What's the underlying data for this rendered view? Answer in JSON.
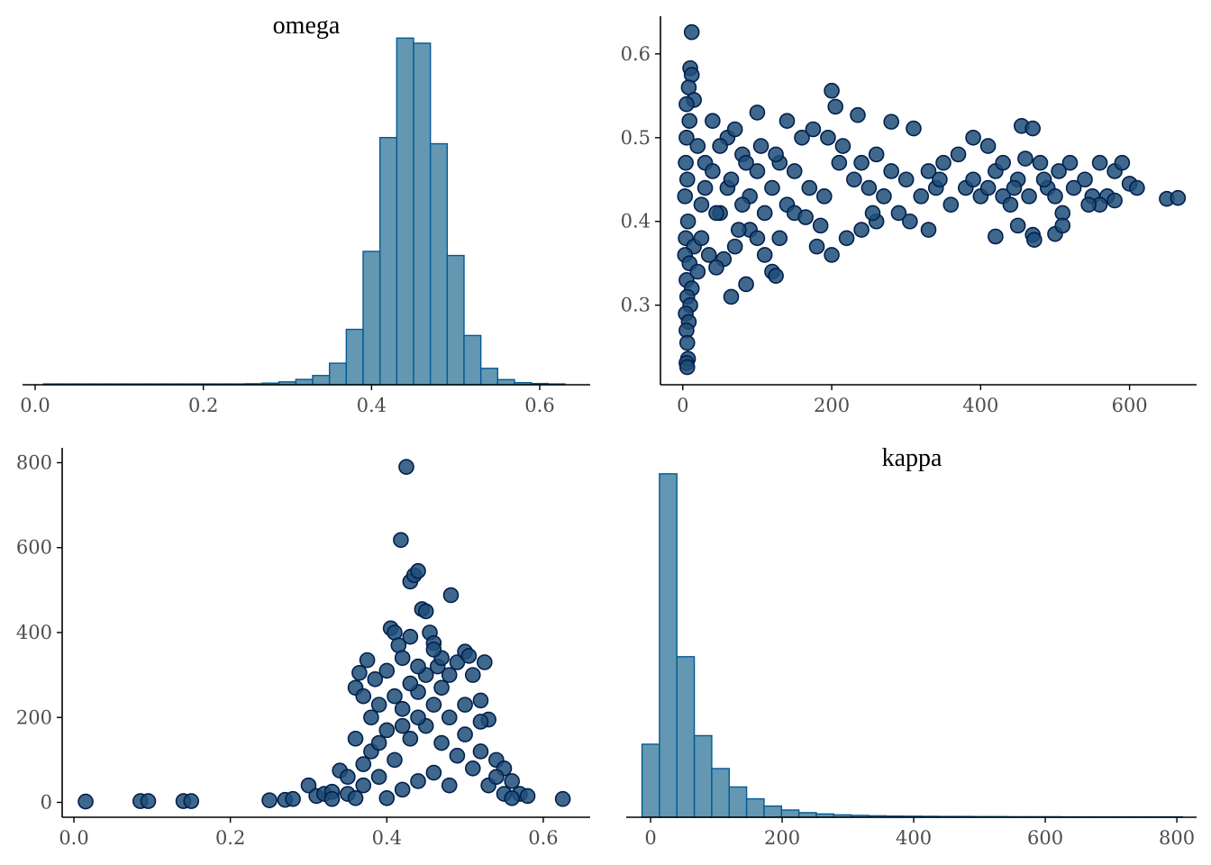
{
  "colors": {
    "bar_fill": "#6497b1",
    "bar_stroke": "#005b96",
    "point_fill": "#1f4e79",
    "point_stroke": "#011f4b"
  },
  "chart_data": [
    {
      "id": "omega-hist",
      "type": "bar",
      "title": "omega",
      "xlabel": "",
      "ylabel": "",
      "xlim": [
        -0.015,
        0.66
      ],
      "ylim": [
        0,
        1700
      ],
      "xticks": [
        "0.0",
        "0.2",
        "0.4",
        "0.6"
      ],
      "bin_width": 0.02,
      "bins": [
        {
          "x0": 0.01,
          "count": 4
        },
        {
          "x0": 0.03,
          "count": 4
        },
        {
          "x0": 0.05,
          "count": 4
        },
        {
          "x0": 0.07,
          "count": 4
        },
        {
          "x0": 0.09,
          "count": 4
        },
        {
          "x0": 0.11,
          "count": 4
        },
        {
          "x0": 0.13,
          "count": 4
        },
        {
          "x0": 0.15,
          "count": 4
        },
        {
          "x0": 0.17,
          "count": 4
        },
        {
          "x0": 0.19,
          "count": 4
        },
        {
          "x0": 0.21,
          "count": 4
        },
        {
          "x0": 0.23,
          "count": 4
        },
        {
          "x0": 0.25,
          "count": 5
        },
        {
          "x0": 0.27,
          "count": 8
        },
        {
          "x0": 0.29,
          "count": 14
        },
        {
          "x0": 0.31,
          "count": 26
        },
        {
          "x0": 0.33,
          "count": 45
        },
        {
          "x0": 0.35,
          "count": 105
        },
        {
          "x0": 0.37,
          "count": 270
        },
        {
          "x0": 0.39,
          "count": 650
        },
        {
          "x0": 0.41,
          "count": 1205
        },
        {
          "x0": 0.43,
          "count": 1690
        },
        {
          "x0": 0.45,
          "count": 1665
        },
        {
          "x0": 0.47,
          "count": 1175
        },
        {
          "x0": 0.49,
          "count": 630
        },
        {
          "x0": 0.51,
          "count": 240
        },
        {
          "x0": 0.53,
          "count": 80
        },
        {
          "x0": 0.55,
          "count": 25
        },
        {
          "x0": 0.57,
          "count": 10
        },
        {
          "x0": 0.59,
          "count": 6
        },
        {
          "x0": 0.61,
          "count": 4
        }
      ]
    },
    {
      "id": "kappa-vs-omega-scatter",
      "type": "scatter",
      "title": "",
      "xlabel": "",
      "ylabel": "",
      "x_variable": "kappa",
      "y_variable": "omega",
      "xlim": [
        -30,
        690
      ],
      "ylim": [
        0.205,
        0.645
      ],
      "xticks": [
        "0",
        "200",
        "400",
        "600"
      ],
      "yticks": [
        "0.3",
        "0.4",
        "0.5",
        "0.6"
      ],
      "points": [
        [
          12,
          0.626
        ],
        [
          10,
          0.583
        ],
        [
          12,
          0.575
        ],
        [
          8,
          0.56
        ],
        [
          15,
          0.545
        ],
        [
          5,
          0.54
        ],
        [
          9,
          0.52
        ],
        [
          5,
          0.5
        ],
        [
          20,
          0.49
        ],
        [
          4,
          0.47
        ],
        [
          30,
          0.47
        ],
        [
          6,
          0.45
        ],
        [
          40,
          0.46
        ],
        [
          3,
          0.43
        ],
        [
          25,
          0.42
        ],
        [
          7,
          0.4
        ],
        [
          50,
          0.41
        ],
        [
          4,
          0.38
        ],
        [
          15,
          0.37
        ],
        [
          3,
          0.36
        ],
        [
          9,
          0.35
        ],
        [
          5,
          0.33
        ],
        [
          12,
          0.32
        ],
        [
          6,
          0.31
        ],
        [
          10,
          0.3
        ],
        [
          4,
          0.29
        ],
        [
          8,
          0.28
        ],
        [
          5,
          0.27
        ],
        [
          6,
          0.255
        ],
        [
          7,
          0.236
        ],
        [
          5,
          0.231
        ],
        [
          6,
          0.226
        ],
        [
          40,
          0.52
        ],
        [
          60,
          0.5
        ],
        [
          80,
          0.48
        ],
        [
          100,
          0.46
        ],
        [
          120,
          0.44
        ],
        [
          140,
          0.42
        ],
        [
          90,
          0.39
        ],
        [
          70,
          0.37
        ],
        [
          55,
          0.355
        ],
        [
          45,
          0.345
        ],
        [
          110,
          0.36
        ],
        [
          130,
          0.38
        ],
        [
          150,
          0.46
        ],
        [
          170,
          0.44
        ],
        [
          190,
          0.43
        ],
        [
          160,
          0.5
        ],
        [
          140,
          0.52
        ],
        [
          100,
          0.53
        ],
        [
          70,
          0.51
        ],
        [
          50,
          0.49
        ],
        [
          30,
          0.44
        ],
        [
          25,
          0.38
        ],
        [
          35,
          0.36
        ],
        [
          20,
          0.34
        ],
        [
          65,
          0.31
        ],
        [
          85,
          0.325
        ],
        [
          120,
          0.34
        ],
        [
          125,
          0.335
        ],
        [
          180,
          0.37
        ],
        [
          200,
          0.36
        ],
        [
          210,
          0.47
        ],
        [
          230,
          0.45
        ],
        [
          250,
          0.44
        ],
        [
          270,
          0.43
        ],
        [
          240,
          0.39
        ],
        [
          220,
          0.38
        ],
        [
          200,
          0.556
        ],
        [
          205,
          0.537
        ],
        [
          235,
          0.527
        ],
        [
          280,
          0.519
        ],
        [
          310,
          0.511
        ],
        [
          290,
          0.41
        ],
        [
          305,
          0.4
        ],
        [
          330,
          0.39
        ],
        [
          340,
          0.44
        ],
        [
          350,
          0.47
        ],
        [
          370,
          0.48
        ],
        [
          380,
          0.44
        ],
        [
          390,
          0.5
        ],
        [
          410,
          0.49
        ],
        [
          420,
          0.46
        ],
        [
          430,
          0.43
        ],
        [
          440,
          0.42
        ],
        [
          450,
          0.45
        ],
        [
          455,
          0.514
        ],
        [
          470,
          0.511
        ],
        [
          460,
          0.475
        ],
        [
          480,
          0.47
        ],
        [
          490,
          0.44
        ],
        [
          500,
          0.43
        ],
        [
          510,
          0.41
        ],
        [
          520,
          0.47
        ],
        [
          540,
          0.45
        ],
        [
          560,
          0.47
        ],
        [
          580,
          0.46
        ],
        [
          590,
          0.47
        ],
        [
          600,
          0.445
        ],
        [
          610,
          0.44
        ],
        [
          650,
          0.427
        ],
        [
          665,
          0.428
        ],
        [
          550,
          0.43
        ],
        [
          570,
          0.43
        ],
        [
          580,
          0.425
        ],
        [
          560,
          0.42
        ],
        [
          470,
          0.384
        ],
        [
          472,
          0.378
        ],
        [
          450,
          0.395
        ],
        [
          420,
          0.382
        ],
        [
          500,
          0.385
        ],
        [
          510,
          0.395
        ],
        [
          360,
          0.42
        ],
        [
          320,
          0.43
        ],
        [
          260,
          0.4
        ],
        [
          255,
          0.41
        ],
        [
          150,
          0.41
        ],
        [
          165,
          0.405
        ],
        [
          185,
          0.395
        ],
        [
          175,
          0.51
        ],
        [
          195,
          0.5
        ],
        [
          215,
          0.49
        ],
        [
          260,
          0.48
        ],
        [
          280,
          0.46
        ],
        [
          300,
          0.45
        ],
        [
          240,
          0.47
        ],
        [
          330,
          0.46
        ],
        [
          345,
          0.45
        ],
        [
          390,
          0.45
        ],
        [
          400,
          0.43
        ],
        [
          410,
          0.44
        ],
        [
          430,
          0.47
        ],
        [
          445,
          0.44
        ],
        [
          465,
          0.43
        ],
        [
          485,
          0.45
        ],
        [
          505,
          0.46
        ],
        [
          525,
          0.44
        ],
        [
          545,
          0.42
        ],
        [
          90,
          0.43
        ],
        [
          110,
          0.41
        ],
        [
          130,
          0.47
        ],
        [
          60,
          0.44
        ],
        [
          80,
          0.42
        ],
        [
          100,
          0.38
        ],
        [
          75,
          0.39
        ],
        [
          45,
          0.41
        ],
        [
          65,
          0.45
        ],
        [
          85,
          0.47
        ],
        [
          105,
          0.49
        ],
        [
          125,
          0.48
        ]
      ]
    },
    {
      "id": "omega-vs-kappa-scatter",
      "type": "scatter",
      "title": "",
      "xlabel": "",
      "ylabel": "",
      "x_variable": "omega",
      "y_variable": "kappa",
      "xlim": [
        -0.015,
        0.66
      ],
      "ylim": [
        -35,
        835
      ],
      "xticks": [
        "0.0",
        "0.2",
        "0.4",
        "0.6"
      ],
      "yticks": [
        "0",
        "200",
        "400",
        "600",
        "800"
      ],
      "points": [
        [
          0.015,
          2
        ],
        [
          0.085,
          3
        ],
        [
          0.095,
          3
        ],
        [
          0.14,
          3
        ],
        [
          0.15,
          3
        ],
        [
          0.25,
          5
        ],
        [
          0.27,
          6
        ],
        [
          0.28,
          8
        ],
        [
          0.3,
          40
        ],
        [
          0.31,
          15
        ],
        [
          0.32,
          20
        ],
        [
          0.33,
          25
        ],
        [
          0.34,
          75
        ],
        [
          0.35,
          60
        ],
        [
          0.36,
          150
        ],
        [
          0.36,
          270
        ],
        [
          0.365,
          305
        ],
        [
          0.37,
          250
        ],
        [
          0.375,
          335
        ],
        [
          0.38,
          200
        ],
        [
          0.385,
          290
        ],
        [
          0.39,
          230
        ],
        [
          0.4,
          310
        ],
        [
          0.405,
          410
        ],
        [
          0.41,
          400
        ],
        [
          0.415,
          370
        ],
        [
          0.418,
          618
        ],
        [
          0.425,
          790
        ],
        [
          0.43,
          520
        ],
        [
          0.435,
          535
        ],
        [
          0.44,
          545
        ],
        [
          0.445,
          455
        ],
        [
          0.45,
          450
        ],
        [
          0.455,
          400
        ],
        [
          0.46,
          375
        ],
        [
          0.465,
          320
        ],
        [
          0.47,
          340
        ],
        [
          0.48,
          300
        ],
        [
          0.482,
          488
        ],
        [
          0.49,
          330
        ],
        [
          0.5,
          355
        ],
        [
          0.505,
          345
        ],
        [
          0.51,
          300
        ],
        [
          0.52,
          240
        ],
        [
          0.525,
          330
        ],
        [
          0.53,
          195
        ],
        [
          0.54,
          100
        ],
        [
          0.55,
          80
        ],
        [
          0.56,
          50
        ],
        [
          0.57,
          20
        ],
        [
          0.58,
          15
        ],
        [
          0.625,
          8
        ],
        [
          0.35,
          20
        ],
        [
          0.37,
          40
        ],
        [
          0.39,
          60
        ],
        [
          0.41,
          100
        ],
        [
          0.43,
          150
        ],
        [
          0.45,
          180
        ],
        [
          0.47,
          140
        ],
        [
          0.49,
          110
        ],
        [
          0.51,
          80
        ],
        [
          0.53,
          40
        ],
        [
          0.55,
          20
        ],
        [
          0.38,
          120
        ],
        [
          0.4,
          170
        ],
        [
          0.42,
          220
        ],
        [
          0.44,
          260
        ],
        [
          0.46,
          230
        ],
        [
          0.48,
          200
        ],
        [
          0.5,
          160
        ],
        [
          0.52,
          120
        ],
        [
          0.42,
          30
        ],
        [
          0.44,
          50
        ],
        [
          0.46,
          70
        ],
        [
          0.48,
          40
        ],
        [
          0.4,
          10
        ],
        [
          0.36,
          10
        ],
        [
          0.33,
          8
        ],
        [
          0.56,
          10
        ],
        [
          0.45,
          300
        ],
        [
          0.43,
          280
        ],
        [
          0.41,
          250
        ],
        [
          0.47,
          270
        ],
        [
          0.44,
          320
        ],
        [
          0.42,
          340
        ],
        [
          0.46,
          360
        ],
        [
          0.43,
          390
        ],
        [
          0.39,
          140
        ],
        [
          0.37,
          90
        ],
        [
          0.54,
          60
        ],
        [
          0.5,
          230
        ],
        [
          0.52,
          190
        ],
        [
          0.44,
          200
        ],
        [
          0.42,
          180
        ]
      ]
    },
    {
      "id": "kappa-hist",
      "type": "bar",
      "title": "kappa",
      "xlabel": "",
      "ylabel": "",
      "xlim": [
        -37,
        830
      ],
      "ylim": [
        0,
        2650
      ],
      "xticks": [
        "0",
        "200",
        "400",
        "600",
        "800"
      ],
      "bin_width": 26.5,
      "bins": [
        {
          "x0": -13,
          "count": 555
        },
        {
          "x0": 13.5,
          "count": 2610
        },
        {
          "x0": 40,
          "count": 1220
        },
        {
          "x0": 66.5,
          "count": 620
        },
        {
          "x0": 93,
          "count": 370
        },
        {
          "x0": 119.5,
          "count": 230
        },
        {
          "x0": 146,
          "count": 140
        },
        {
          "x0": 172.5,
          "count": 85
        },
        {
          "x0": 199,
          "count": 55
        },
        {
          "x0": 225.5,
          "count": 35
        },
        {
          "x0": 252,
          "count": 25
        },
        {
          "x0": 278.5,
          "count": 18
        },
        {
          "x0": 305,
          "count": 14
        },
        {
          "x0": 331.5,
          "count": 11
        },
        {
          "x0": 358,
          "count": 9
        },
        {
          "x0": 384.5,
          "count": 8
        },
        {
          "x0": 411,
          "count": 7
        },
        {
          "x0": 437.5,
          "count": 6
        },
        {
          "x0": 464,
          "count": 6
        },
        {
          "x0": 490.5,
          "count": 5
        },
        {
          "x0": 517,
          "count": 5
        },
        {
          "x0": 543.5,
          "count": 4
        },
        {
          "x0": 570,
          "count": 4
        },
        {
          "x0": 596.5,
          "count": 4
        },
        {
          "x0": 623,
          "count": 3
        },
        {
          "x0": 649.5,
          "count": 3
        },
        {
          "x0": 676,
          "count": 3
        },
        {
          "x0": 702.5,
          "count": 3
        },
        {
          "x0": 729,
          "count": 3
        },
        {
          "x0": 755.5,
          "count": 3
        },
        {
          "x0": 782,
          "count": 3
        }
      ]
    }
  ]
}
